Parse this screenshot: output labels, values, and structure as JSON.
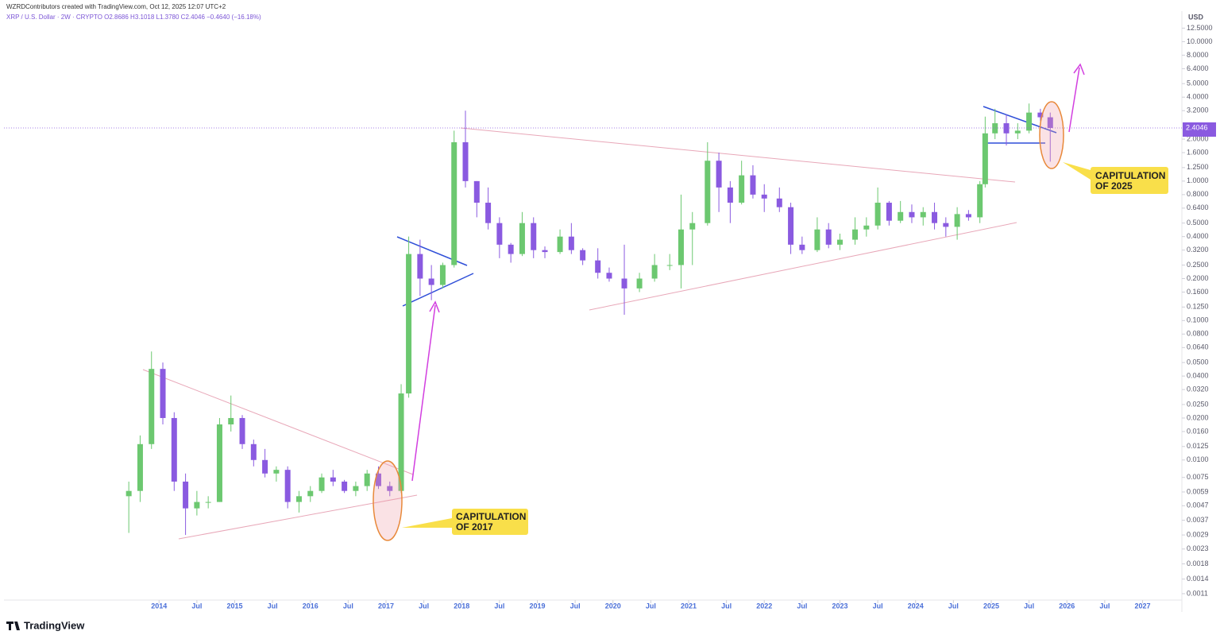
{
  "chart_data": {
    "type": "candlestick",
    "title": "WZRDContributors created with TradingView.com, Oct 12, 2025 12:07 UTC+2",
    "subtitle": "XRP / U.S. Dollar · 2W · CRYPTO  O2.8686  H3.1018  L1.3780  C2.4046  −0.4640 (−16.18%)",
    "axis_label": "USD",
    "brand": "TradingView",
    "annotations": [
      [
        "CAPITULATION",
        "OF 2017"
      ],
      [
        "CAPITULATION",
        "OF 2025"
      ]
    ],
    "up_color": "#6cc870",
    "down_color": "#8a5ae0",
    "log_scale": true,
    "x": [
      2013.6,
      2013.75,
      2013.9,
      2014.05,
      2014.2,
      2014.35,
      2014.5,
      2014.65,
      2014.8,
      2014.95,
      2015.1,
      2015.25,
      2015.4,
      2015.55,
      2015.7,
      2015.85,
      2016.0,
      2016.15,
      2016.3,
      2016.45,
      2016.6,
      2016.75,
      2016.9,
      2017.05,
      2017.2,
      2017.3,
      2017.45,
      2017.6,
      2017.75,
      2017.9,
      2018.05,
      2018.2,
      2018.35,
      2018.5,
      2018.65,
      2018.8,
      2018.95,
      2019.1,
      2019.3,
      2019.45,
      2019.6,
      2019.8,
      2019.95,
      2020.15,
      2020.35,
      2020.55,
      2020.75,
      2020.9,
      2021.05,
      2021.25,
      2021.4,
      2021.55,
      2021.7,
      2021.85,
      2022.0,
      2022.2,
      2022.35,
      2022.5,
      2022.7,
      2022.85,
      2023.0,
      2023.2,
      2023.35,
      2023.5,
      2023.65,
      2023.8,
      2023.95,
      2024.1,
      2024.25,
      2024.4,
      2024.55,
      2024.7,
      2024.85,
      2024.92,
      2025.05,
      2025.2,
      2025.35,
      2025.5,
      2025.65,
      2025.78
    ],
    "open": [
      0.0055,
      0.006,
      0.013,
      0.045,
      0.02,
      0.007,
      0.0045,
      0.005,
      0.005,
      0.018,
      0.02,
      0.013,
      0.01,
      0.008,
      0.0085,
      0.005,
      0.0055,
      0.006,
      0.0075,
      0.007,
      0.006,
      0.0065,
      0.008,
      0.0065,
      0.006,
      0.03,
      0.3,
      0.2,
      0.18,
      0.25,
      1.9,
      1.0,
      0.7,
      0.5,
      0.35,
      0.3,
      0.5,
      0.32,
      0.31,
      0.4,
      0.32,
      0.27,
      0.22,
      0.2,
      0.17,
      0.2,
      0.25,
      0.25,
      0.45,
      0.5,
      1.4,
      0.9,
      0.7,
      1.1,
      0.8,
      0.75,
      0.65,
      0.35,
      0.32,
      0.45,
      0.35,
      0.38,
      0.45,
      0.48,
      0.7,
      0.52,
      0.6,
      0.55,
      0.6,
      0.5,
      0.47,
      0.58,
      0.55,
      0.95,
      2.2,
      2.6,
      2.2,
      2.3,
      3.1,
      2.8686
    ],
    "high": [
      0.007,
      0.015,
      0.06,
      0.05,
      0.022,
      0.008,
      0.006,
      0.0055,
      0.02,
      0.029,
      0.021,
      0.014,
      0.012,
      0.009,
      0.009,
      0.006,
      0.0065,
      0.008,
      0.0085,
      0.0072,
      0.007,
      0.0085,
      0.009,
      0.007,
      0.035,
      0.4,
      0.38,
      0.25,
      0.26,
      2.3,
      3.2,
      1.0,
      0.9,
      0.55,
      0.36,
      0.6,
      0.55,
      0.34,
      0.45,
      0.5,
      0.33,
      0.33,
      0.24,
      0.35,
      0.22,
      0.3,
      0.3,
      0.8,
      0.6,
      1.9,
      1.6,
      1.0,
      1.4,
      1.3,
      0.95,
      0.9,
      0.7,
      0.4,
      0.55,
      0.5,
      0.42,
      0.55,
      0.55,
      0.9,
      0.72,
      0.72,
      0.68,
      0.65,
      0.7,
      0.55,
      0.65,
      0.62,
      1.0,
      2.9,
      3.3,
      3.0,
      2.6,
      3.6,
      3.3,
      3.1018
    ],
    "low": [
      0.003,
      0.005,
      0.012,
      0.018,
      0.006,
      0.0029,
      0.004,
      0.0045,
      0.005,
      0.016,
      0.012,
      0.009,
      0.0075,
      0.007,
      0.0045,
      0.0042,
      0.005,
      0.0058,
      0.0065,
      0.0058,
      0.0055,
      0.006,
      0.0062,
      0.0055,
      0.0058,
      0.028,
      0.15,
      0.14,
      0.17,
      0.24,
      0.9,
      0.55,
      0.45,
      0.28,
      0.26,
      0.29,
      0.28,
      0.28,
      0.3,
      0.3,
      0.25,
      0.2,
      0.19,
      0.11,
      0.16,
      0.19,
      0.23,
      0.17,
      0.25,
      0.48,
      0.6,
      0.5,
      0.68,
      0.75,
      0.6,
      0.6,
      0.3,
      0.3,
      0.31,
      0.33,
      0.32,
      0.35,
      0.4,
      0.45,
      0.48,
      0.5,
      0.5,
      0.48,
      0.45,
      0.4,
      0.38,
      0.52,
      0.5,
      0.9,
      2.0,
      1.8,
      2.0,
      2.2,
      2.7,
      1.378
    ],
    "close": [
      0.006,
      0.013,
      0.045,
      0.02,
      0.007,
      0.0045,
      0.005,
      0.005,
      0.018,
      0.02,
      0.013,
      0.01,
      0.008,
      0.0085,
      0.005,
      0.0055,
      0.006,
      0.0075,
      0.007,
      0.006,
      0.0065,
      0.008,
      0.0065,
      0.006,
      0.03,
      0.3,
      0.2,
      0.18,
      0.25,
      1.9,
      1.0,
      0.7,
      0.5,
      0.35,
      0.3,
      0.5,
      0.32,
      0.31,
      0.4,
      0.32,
      0.27,
      0.22,
      0.2,
      0.17,
      0.2,
      0.25,
      0.25,
      0.45,
      0.5,
      1.4,
      0.9,
      0.7,
      1.1,
      0.8,
      0.75,
      0.65,
      0.35,
      0.32,
      0.45,
      0.35,
      0.38,
      0.45,
      0.48,
      0.7,
      0.52,
      0.6,
      0.55,
      0.6,
      0.5,
      0.47,
      0.58,
      0.55,
      0.95,
      2.2,
      2.6,
      2.2,
      2.3,
      3.1,
      2.8686,
      2.4046
    ],
    "xlim": [
      2011.95,
      2027.52
    ],
    "xticks": [
      {
        "value": 2014,
        "label": "2014"
      },
      {
        "value": 2014.5,
        "label": "Jul"
      },
      {
        "value": 2015,
        "label": "2015"
      },
      {
        "value": 2015.5,
        "label": "Jul"
      },
      {
        "value": 2016,
        "label": "2016"
      },
      {
        "value": 2016.5,
        "label": "Jul"
      },
      {
        "value": 2017,
        "label": "2017"
      },
      {
        "value": 2017.5,
        "label": "Jul"
      },
      {
        "value": 2018,
        "label": "2018"
      },
      {
        "value": 2018.5,
        "label": "Jul"
      },
      {
        "value": 2019,
        "label": "2019"
      },
      {
        "value": 2019.5,
        "label": "Jul"
      },
      {
        "value": 2020,
        "label": "2020"
      },
      {
        "value": 2020.5,
        "label": "Jul"
      },
      {
        "value": 2021,
        "label": "2021"
      },
      {
        "value": 2021.5,
        "label": "Jul"
      },
      {
        "value": 2022,
        "label": "2022"
      },
      {
        "value": 2022.5,
        "label": "Jul"
      },
      {
        "value": 2023,
        "label": "2023"
      },
      {
        "value": 2023.5,
        "label": "Jul"
      },
      {
        "value": 2024,
        "label": "2024"
      },
      {
        "value": 2024.5,
        "label": "Jul"
      },
      {
        "value": 2025,
        "label": "2025"
      },
      {
        "value": 2025.5,
        "label": "Jul"
      },
      {
        "value": 2026,
        "label": "2026"
      },
      {
        "value": 2026.5,
        "label": "Jul"
      },
      {
        "value": 2027,
        "label": "2027"
      }
    ],
    "ylim": [
      0.00099,
      15.3
    ],
    "yticks": [
      {
        "value": 12.5,
        "label": "12.5000"
      },
      {
        "value": 10,
        "label": "10.0000"
      },
      {
        "value": 8,
        "label": "8.0000"
      },
      {
        "value": 6.4,
        "label": "6.4000"
      },
      {
        "value": 5,
        "label": "5.0000"
      },
      {
        "value": 4,
        "label": "4.0000"
      },
      {
        "value": 3.2,
        "label": "3.2000"
      },
      {
        "value": 2,
        "label": "2.0000"
      },
      {
        "value": 1.6,
        "label": "1.6000"
      },
      {
        "value": 1.25,
        "label": "1.2500"
      },
      {
        "value": 1,
        "label": "1.0000"
      },
      {
        "value": 0.8,
        "label": "0.8000"
      },
      {
        "value": 0.64,
        "label": "0.6400"
      },
      {
        "value": 0.5,
        "label": "0.5000"
      },
      {
        "value": 0.4,
        "label": "0.4000"
      },
      {
        "value": 0.32,
        "label": "0.3200"
      },
      {
        "value": 0.25,
        "label": "0.2500"
      },
      {
        "value": 0.2,
        "label": "0.2000"
      },
      {
        "value": 0.16,
        "label": "0.1600"
      },
      {
        "value": 0.125,
        "label": "0.1250"
      },
      {
        "value": 0.1,
        "label": "0.1000"
      },
      {
        "value": 0.08,
        "label": "0.0800"
      },
      {
        "value": 0.064,
        "label": "0.0640"
      },
      {
        "value": 0.05,
        "label": "0.0500"
      },
      {
        "value": 0.04,
        "label": "0.0400"
      },
      {
        "value": 0.032,
        "label": "0.0320"
      },
      {
        "value": 0.025,
        "label": "0.0250"
      },
      {
        "value": 0.02,
        "label": "0.0200"
      },
      {
        "value": 0.016,
        "label": "0.0160"
      },
      {
        "value": 0.0125,
        "label": "0.0125"
      },
      {
        "value": 0.01,
        "label": "0.0100"
      },
      {
        "value": 0.0075,
        "label": "0.0075"
      },
      {
        "value": 0.0059,
        "label": "0.0059"
      },
      {
        "value": 0.0047,
        "label": "0.0047"
      },
      {
        "value": 0.0037,
        "label": "0.0037"
      },
      {
        "value": 0.0029,
        "label": "0.0029"
      },
      {
        "value": 0.0023,
        "label": "0.0023"
      },
      {
        "value": 0.0018,
        "label": "0.0018"
      },
      {
        "value": 0.0014,
        "label": "0.0014"
      },
      {
        "value": 0.0011,
        "label": "0.0011"
      }
    ]
  }
}
